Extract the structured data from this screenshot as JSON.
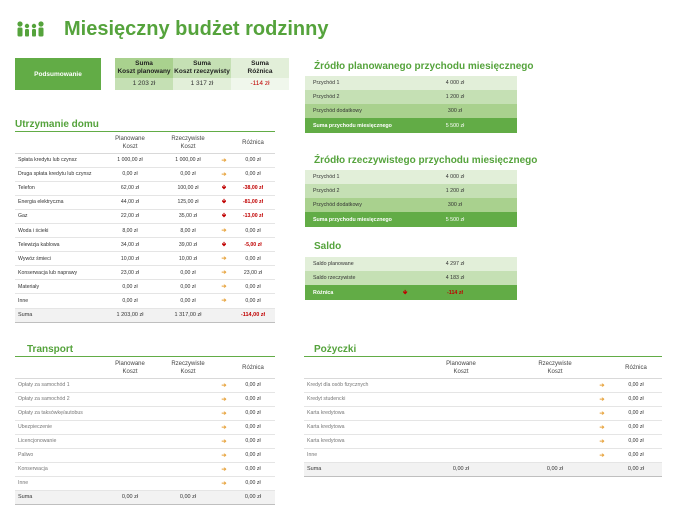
{
  "header": {
    "title": "Miesięczny budżet rodzinny",
    "logo_icon": "family-icon"
  },
  "summary": {
    "label": "Podsumowanie",
    "planned_h1": "Suma",
    "planned_h2": "Koszt planowany",
    "planned_value": "1 203 zł",
    "actual_h1": "Suma",
    "actual_h2": "Koszt rzeczywisty",
    "actual_value": "1 317 zł",
    "diff_h1": "Suma",
    "diff_h2": "Różnica",
    "diff_value": "-114 zł"
  },
  "household": {
    "title": "Utrzymanie domu",
    "col_planned_1": "Planowane",
    "col_planned_2": "Koszt",
    "col_actual_1": "Rzeczywiste",
    "col_actual_2": "Koszt",
    "col_diff": "Różnica",
    "rows": [
      {
        "name": "Spłata kredytu lub czynsz",
        "planned": "1 000,00 zł",
        "actual": "1 000,00 zł",
        "diff": "0,00 zł"
      },
      {
        "name": "Druga spłata kredytu lub czynsz",
        "planned": "0,00 zł",
        "actual": "0,00 zł",
        "diff": "0,00 zł"
      },
      {
        "name": "Telefon",
        "planned": "62,00 zł",
        "actual": "100,00 zł",
        "diff": "-38,00 zł"
      },
      {
        "name": "Energia elektryczna",
        "planned": "44,00 zł",
        "actual": "125,00 zł",
        "diff": "-81,00 zł"
      },
      {
        "name": "Gaz",
        "planned": "22,00 zł",
        "actual": "35,00 zł",
        "diff": "-13,00 zł"
      },
      {
        "name": "Woda i ścieki",
        "planned": "8,00 zł",
        "actual": "8,00 zł",
        "diff": "0,00 zł"
      },
      {
        "name": "Telewizja kablowa",
        "planned": "34,00 zł",
        "actual": "39,00 zł",
        "diff": "-5,00 zł"
      },
      {
        "name": "Wywóz śmieci",
        "planned": "10,00 zł",
        "actual": "10,00 zł",
        "diff": "0,00 zł"
      },
      {
        "name": "Konserwacja lub naprawy",
        "planned": "23,00 zł",
        "actual": "0,00 zł",
        "diff": "23,00 zł"
      },
      {
        "name": "Materiały",
        "planned": "0,00 zł",
        "actual": "0,00 zł",
        "diff": "0,00 zł"
      },
      {
        "name": "Inne",
        "planned": "0,00 zł",
        "actual": "0,00 zł",
        "diff": "0,00 zł"
      }
    ],
    "sum_label": "Suma",
    "sum_planned": "1 203,00 zł",
    "sum_actual": "1 317,00 zł",
    "sum_diff": "-114,00 zł"
  },
  "transport": {
    "title": "Transport",
    "col_planned_1": "Planowane",
    "col_planned_2": "Koszt",
    "col_actual_1": "Rzeczywiste",
    "col_actual_2": "Koszt",
    "col_diff": "Różnica",
    "rows": [
      {
        "name": "Opłaty za samochód 1",
        "diff": "0,00 zł"
      },
      {
        "name": "Opłaty za samochód 2",
        "diff": "0,00 zł"
      },
      {
        "name": "Opłaty za taksówkę/autobus",
        "diff": "0,00 zł"
      },
      {
        "name": "Ubezpieczenie",
        "diff": "0,00 zł"
      },
      {
        "name": "Licencjonowanie",
        "diff": "0,00 zł"
      },
      {
        "name": "Paliwo",
        "diff": "0,00 zł"
      },
      {
        "name": "Konserwacja",
        "diff": "0,00 zł"
      },
      {
        "name": "Inne",
        "diff": "0,00 zł"
      }
    ],
    "sum_label": "Suma",
    "sum_planned": "0,00 zł",
    "sum_actual": "0,00 zł",
    "sum_diff": "0,00 zł"
  },
  "loans": {
    "title": "Pożyczki",
    "col_planned_1": "Planowane",
    "col_planned_2": "Koszt",
    "col_actual_1": "Rzeczywiste",
    "col_actual_2": "Koszt",
    "col_diff": "Różnica",
    "rows": [
      {
        "name": "Kredyt dla osób fizycznych",
        "diff": "0,00 zł"
      },
      {
        "name": "Kredyt studencki",
        "diff": "0,00 zł"
      },
      {
        "name": "Karta kredytowa",
        "diff": "0,00 zł"
      },
      {
        "name": "Karta kredytowa",
        "diff": "0,00 zł"
      },
      {
        "name": "Karta kredytowa",
        "diff": "0,00 zł"
      },
      {
        "name": "Inne",
        "diff": "0,00 zł"
      }
    ],
    "sum_label": "Suma",
    "sum_planned": "0,00 zł",
    "sum_actual": "0,00 zł",
    "sum_diff": "0,00 zł"
  },
  "planned_income": {
    "title": "Źródło planowanego przychodu miesięcznego",
    "rows": [
      {
        "name": "Przychód 1",
        "value": "4 000 zł"
      },
      {
        "name": "Przychód 2",
        "value": "1 200 zł"
      },
      {
        "name": "Przychód dodatkowy",
        "value": "300 zł"
      }
    ],
    "total_label": "Suma przychodu miesięcznego",
    "total_value": "5 500 zł"
  },
  "actual_income": {
    "title": "Źródło rzeczywistego przychodu miesięcznego",
    "rows": [
      {
        "name": "Przychód 1",
        "value": "4 000 zł"
      },
      {
        "name": "Przychód 2",
        "value": "1 200 zł"
      },
      {
        "name": "Przychód dodatkowy",
        "value": "300 zł"
      }
    ],
    "total_label": "Suma przychodu miesięcznego",
    "total_value": "5 500 zł"
  },
  "balance": {
    "title": "Saldo",
    "planned_label": "Saldo planowane",
    "planned_value": "4 297 zł",
    "actual_label": "Saldo rzeczywiste",
    "actual_value": "4 183 zł",
    "diff_label": "Różnica",
    "diff_value": "-114 zł"
  },
  "colors": {
    "accent": "#62ac46",
    "title": "#55a33c",
    "negative": "#c00000",
    "arrow_up": "#e7a23a"
  }
}
